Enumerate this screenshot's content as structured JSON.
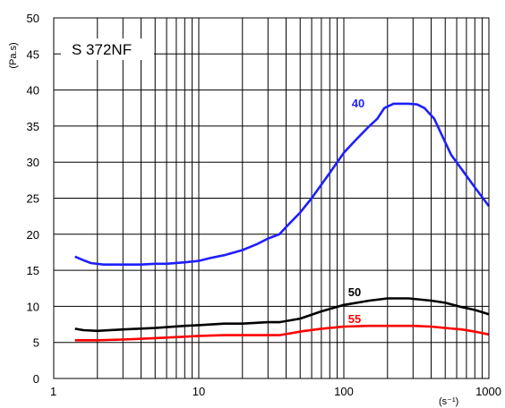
{
  "chart_data": {
    "type": "line",
    "title": "S 372NF",
    "ylabel": "(Pa.s)",
    "xlabel": "(s⁻¹)",
    "x_scale": "log",
    "xlim": [
      1,
      1000
    ],
    "ylim": [
      0,
      50
    ],
    "x_ticks": [
      "1",
      "10",
      "100",
      "1000"
    ],
    "y_ticks": [
      "0",
      "5",
      "10",
      "15",
      "20",
      "25",
      "30",
      "35",
      "40",
      "45",
      "50"
    ],
    "grid": true,
    "series": [
      {
        "name": "40",
        "color": "#1f1fff",
        "points": [
          [
            1.4,
            16.9
          ],
          [
            1.6,
            16.4
          ],
          [
            1.8,
            16.0
          ],
          [
            2.2,
            15.8
          ],
          [
            3,
            15.8
          ],
          [
            4,
            15.8
          ],
          [
            5,
            15.9
          ],
          [
            6,
            15.9
          ],
          [
            8,
            16.1
          ],
          [
            10,
            16.3
          ],
          [
            12,
            16.7
          ],
          [
            15,
            17.1
          ],
          [
            20,
            17.8
          ],
          [
            25,
            18.6
          ],
          [
            30,
            19.4
          ],
          [
            36,
            20.0
          ],
          [
            40,
            21.0
          ],
          [
            50,
            23.0
          ],
          [
            60,
            25.0
          ],
          [
            80,
            28.5
          ],
          [
            100,
            31.3
          ],
          [
            120,
            33.0
          ],
          [
            150,
            35.0
          ],
          [
            170,
            36.0
          ],
          [
            190,
            37.5
          ],
          [
            220,
            38.1
          ],
          [
            280,
            38.1
          ],
          [
            320,
            38.0
          ],
          [
            360,
            37.5
          ],
          [
            420,
            36.0
          ],
          [
            480,
            33.5
          ],
          [
            550,
            31.0
          ],
          [
            650,
            29.0
          ],
          [
            800,
            26.5
          ],
          [
            1000,
            23.9
          ]
        ]
      },
      {
        "name": "50",
        "color": "#000000",
        "points": [
          [
            1.4,
            6.9
          ],
          [
            1.6,
            6.7
          ],
          [
            2,
            6.6
          ],
          [
            3,
            6.8
          ],
          [
            5,
            7.0
          ],
          [
            8,
            7.3
          ],
          [
            10,
            7.4
          ],
          [
            15,
            7.6
          ],
          [
            20,
            7.6
          ],
          [
            30,
            7.8
          ],
          [
            36,
            7.8
          ],
          [
            50,
            8.3
          ],
          [
            70,
            9.3
          ],
          [
            100,
            10.2
          ],
          [
            150,
            10.8
          ],
          [
            200,
            11.1
          ],
          [
            280,
            11.1
          ],
          [
            400,
            10.8
          ],
          [
            500,
            10.5
          ],
          [
            650,
            9.9
          ],
          [
            800,
            9.5
          ],
          [
            1000,
            8.9
          ]
        ]
      },
      {
        "name": "55",
        "color": "#ff0000",
        "points": [
          [
            1.4,
            5.3
          ],
          [
            2,
            5.3
          ],
          [
            3,
            5.4
          ],
          [
            5,
            5.6
          ],
          [
            8,
            5.8
          ],
          [
            10,
            5.9
          ],
          [
            15,
            6.0
          ],
          [
            20,
            6.0
          ],
          [
            36,
            6.0
          ],
          [
            50,
            6.5
          ],
          [
            70,
            6.9
          ],
          [
            100,
            7.2
          ],
          [
            150,
            7.3
          ],
          [
            200,
            7.3
          ],
          [
            300,
            7.3
          ],
          [
            400,
            7.2
          ],
          [
            500,
            7.0
          ],
          [
            650,
            6.8
          ],
          [
            800,
            6.5
          ],
          [
            1000,
            6.1
          ]
        ]
      }
    ]
  }
}
